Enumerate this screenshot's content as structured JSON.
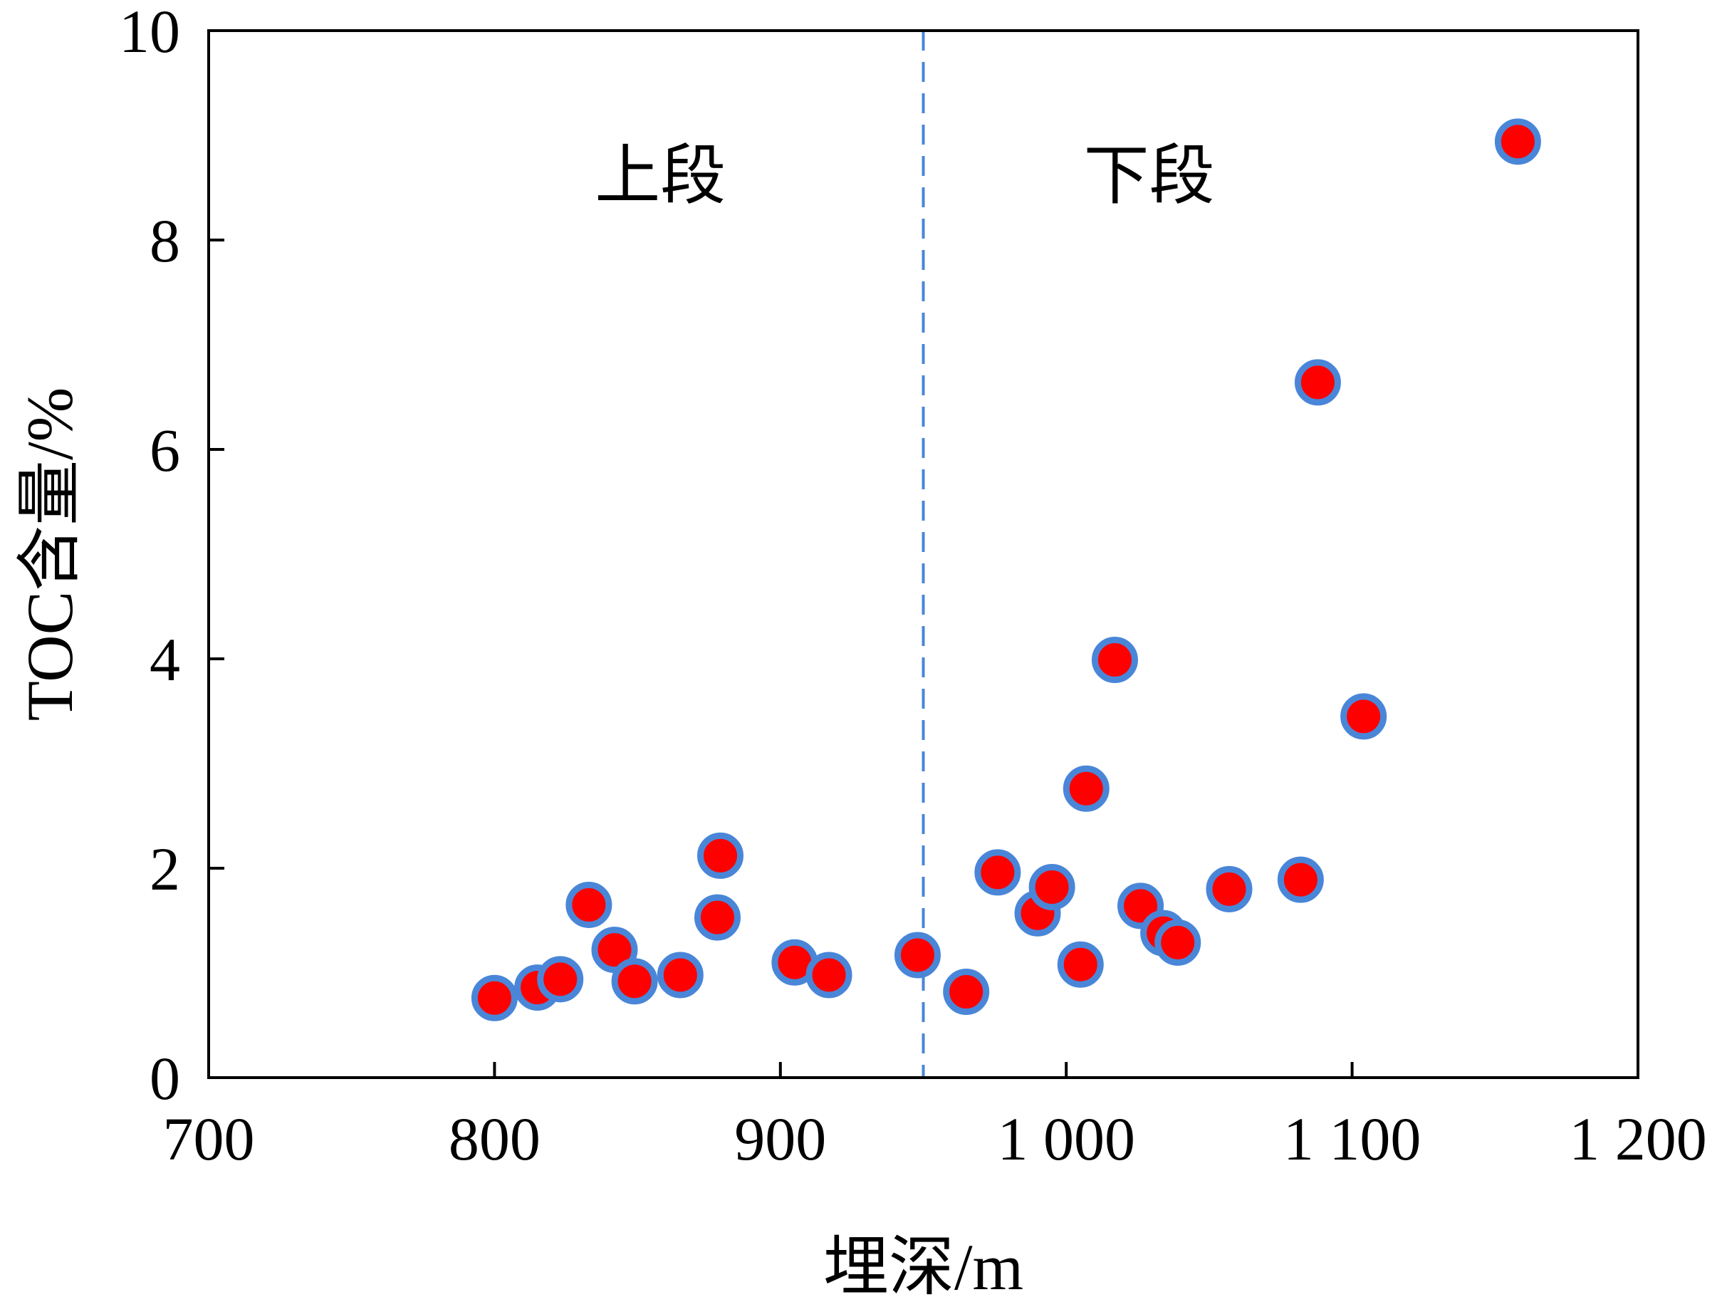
{
  "chart_data": {
    "type": "scatter",
    "xlabel": "埋深/m",
    "ylabel": "TOC含量/%",
    "xlim": [
      700,
      1200
    ],
    "ylim": [
      0,
      10
    ],
    "x_ticks": [
      700,
      800,
      900,
      1000,
      1100,
      1200
    ],
    "x_tick_labels": [
      "700",
      "800",
      "900",
      "1 000",
      "1 100",
      "1 200"
    ],
    "y_ticks": [
      0,
      2,
      4,
      6,
      8,
      10
    ],
    "y_tick_labels": [
      "0",
      "2",
      "4",
      "6",
      "8",
      "10"
    ],
    "divider_x": 950,
    "annotations": [
      {
        "text": "上段",
        "x": 858,
        "y": 8.4
      },
      {
        "text": "下段",
        "x": 1029,
        "y": 8.4
      }
    ],
    "marker_fill": "#ff0000",
    "marker_edge": "#4a86d8",
    "divider_color": "#4a86d8",
    "grid": false,
    "points": [
      {
        "x": 800,
        "y": 0.76
      },
      {
        "x": 815,
        "y": 0.86
      },
      {
        "x": 823,
        "y": 0.94
      },
      {
        "x": 833,
        "y": 1.65
      },
      {
        "x": 842,
        "y": 1.22
      },
      {
        "x": 849,
        "y": 0.92
      },
      {
        "x": 865,
        "y": 0.98
      },
      {
        "x": 879,
        "y": 2.12
      },
      {
        "x": 878,
        "y": 1.53
      },
      {
        "x": 905,
        "y": 1.1
      },
      {
        "x": 917,
        "y": 0.98
      },
      {
        "x": 948,
        "y": 1.17
      },
      {
        "x": 965,
        "y": 0.82
      },
      {
        "x": 976,
        "y": 1.96
      },
      {
        "x": 990,
        "y": 1.57
      },
      {
        "x": 995,
        "y": 1.82
      },
      {
        "x": 1005,
        "y": 1.08
      },
      {
        "x": 1007,
        "y": 2.76
      },
      {
        "x": 1017,
        "y": 3.99
      },
      {
        "x": 1026,
        "y": 1.64
      },
      {
        "x": 1034,
        "y": 1.38
      },
      {
        "x": 1039,
        "y": 1.29
      },
      {
        "x": 1057,
        "y": 1.8
      },
      {
        "x": 1082,
        "y": 1.89
      },
      {
        "x": 1088,
        "y": 6.64
      },
      {
        "x": 1104,
        "y": 3.45
      },
      {
        "x": 1158,
        "y": 8.94
      }
    ]
  }
}
